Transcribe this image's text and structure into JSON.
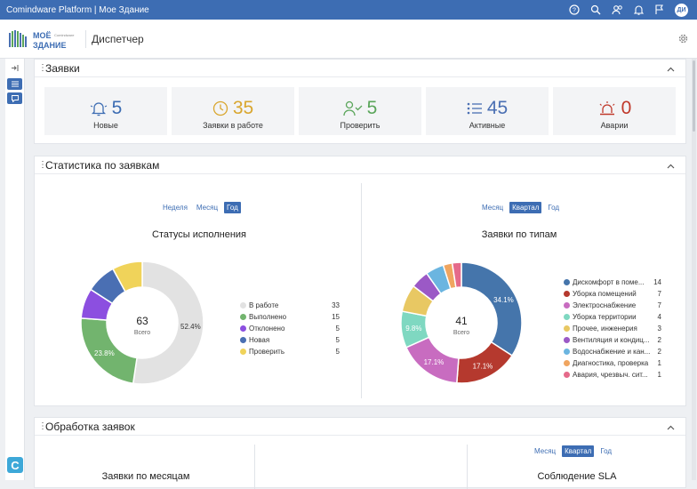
{
  "app": {
    "title": "Comindware Platform | Мое Здание",
    "avatar": "ДИ"
  },
  "header": {
    "title": "Диспетчер",
    "logo_text": "МОЁ ЗДАНИЕ"
  },
  "requests": {
    "title": "Заявки",
    "kpis": [
      {
        "value": "5",
        "label": "Новые",
        "color": "#3d6db3",
        "icon": "bell-icon"
      },
      {
        "value": "35",
        "label": "Заявки в работе",
        "color": "#d9a62e",
        "icon": "clock-icon"
      },
      {
        "value": "5",
        "label": "Проверить",
        "color": "#5aa55a",
        "icon": "user-check-icon"
      },
      {
        "value": "45",
        "label": "Активные",
        "color": "#4a6fb3",
        "icon": "list-icon"
      },
      {
        "value": "0",
        "label": "Аварии",
        "color": "#c0392b",
        "icon": "alarm-icon"
      }
    ]
  },
  "stats": {
    "title": "Статистика по заявкам",
    "left_periods": [
      "Неделя",
      "Месяц",
      "Год"
    ],
    "left_active": 2,
    "right_periods": [
      "Месяц",
      "Квартал",
      "Год"
    ],
    "right_active": 1
  },
  "processing": {
    "title": "Обработка заявок",
    "periods": [
      "Месяц",
      "Квартал",
      "Год"
    ],
    "active": 1,
    "left_title": "Заявки по месяцам",
    "right_title": "Соблюдение SLA"
  },
  "chart_data": [
    {
      "type": "pie",
      "title": "Статусы исполнения",
      "total": "63",
      "total_label": "Всего",
      "categories": [
        "В работе",
        "Выполнено",
        "Отклонено",
        "Новая",
        "Проверить"
      ],
      "values": [
        33,
        15,
        5,
        5,
        5
      ],
      "colors": [
        "#e2e2e2",
        "#72b46e",
        "#8c4fe0",
        "#4a6fb3",
        "#f0d35a"
      ],
      "labels": [
        "52.4%",
        "23.8%",
        "",
        "",
        ""
      ]
    },
    {
      "type": "pie",
      "title": "Заявки по типам",
      "total": "41",
      "total_label": "Всего",
      "categories": [
        "Дискомфорт в поме...",
        "Уборка помещений",
        "Электроснабжение",
        "Уборка территории",
        "Прочее, инженерия",
        "Вентиляция и кондиц...",
        "Водоснабжение и кан...",
        "Диагностика, проверка",
        "Авария, чрезвыч. сит..."
      ],
      "values": [
        14,
        7,
        7,
        4,
        3,
        2,
        2,
        1,
        1
      ],
      "colors": [
        "#4575ab",
        "#b5392e",
        "#c86cc0",
        "#7fd8c1",
        "#e8c863",
        "#9b59c6",
        "#6bb5e0",
        "#f0a560",
        "#e56a8a"
      ],
      "labels": [
        "34.1%",
        "17.1%",
        "17.1%",
        "9.8%",
        "",
        "",
        "",
        "",
        ""
      ]
    }
  ]
}
